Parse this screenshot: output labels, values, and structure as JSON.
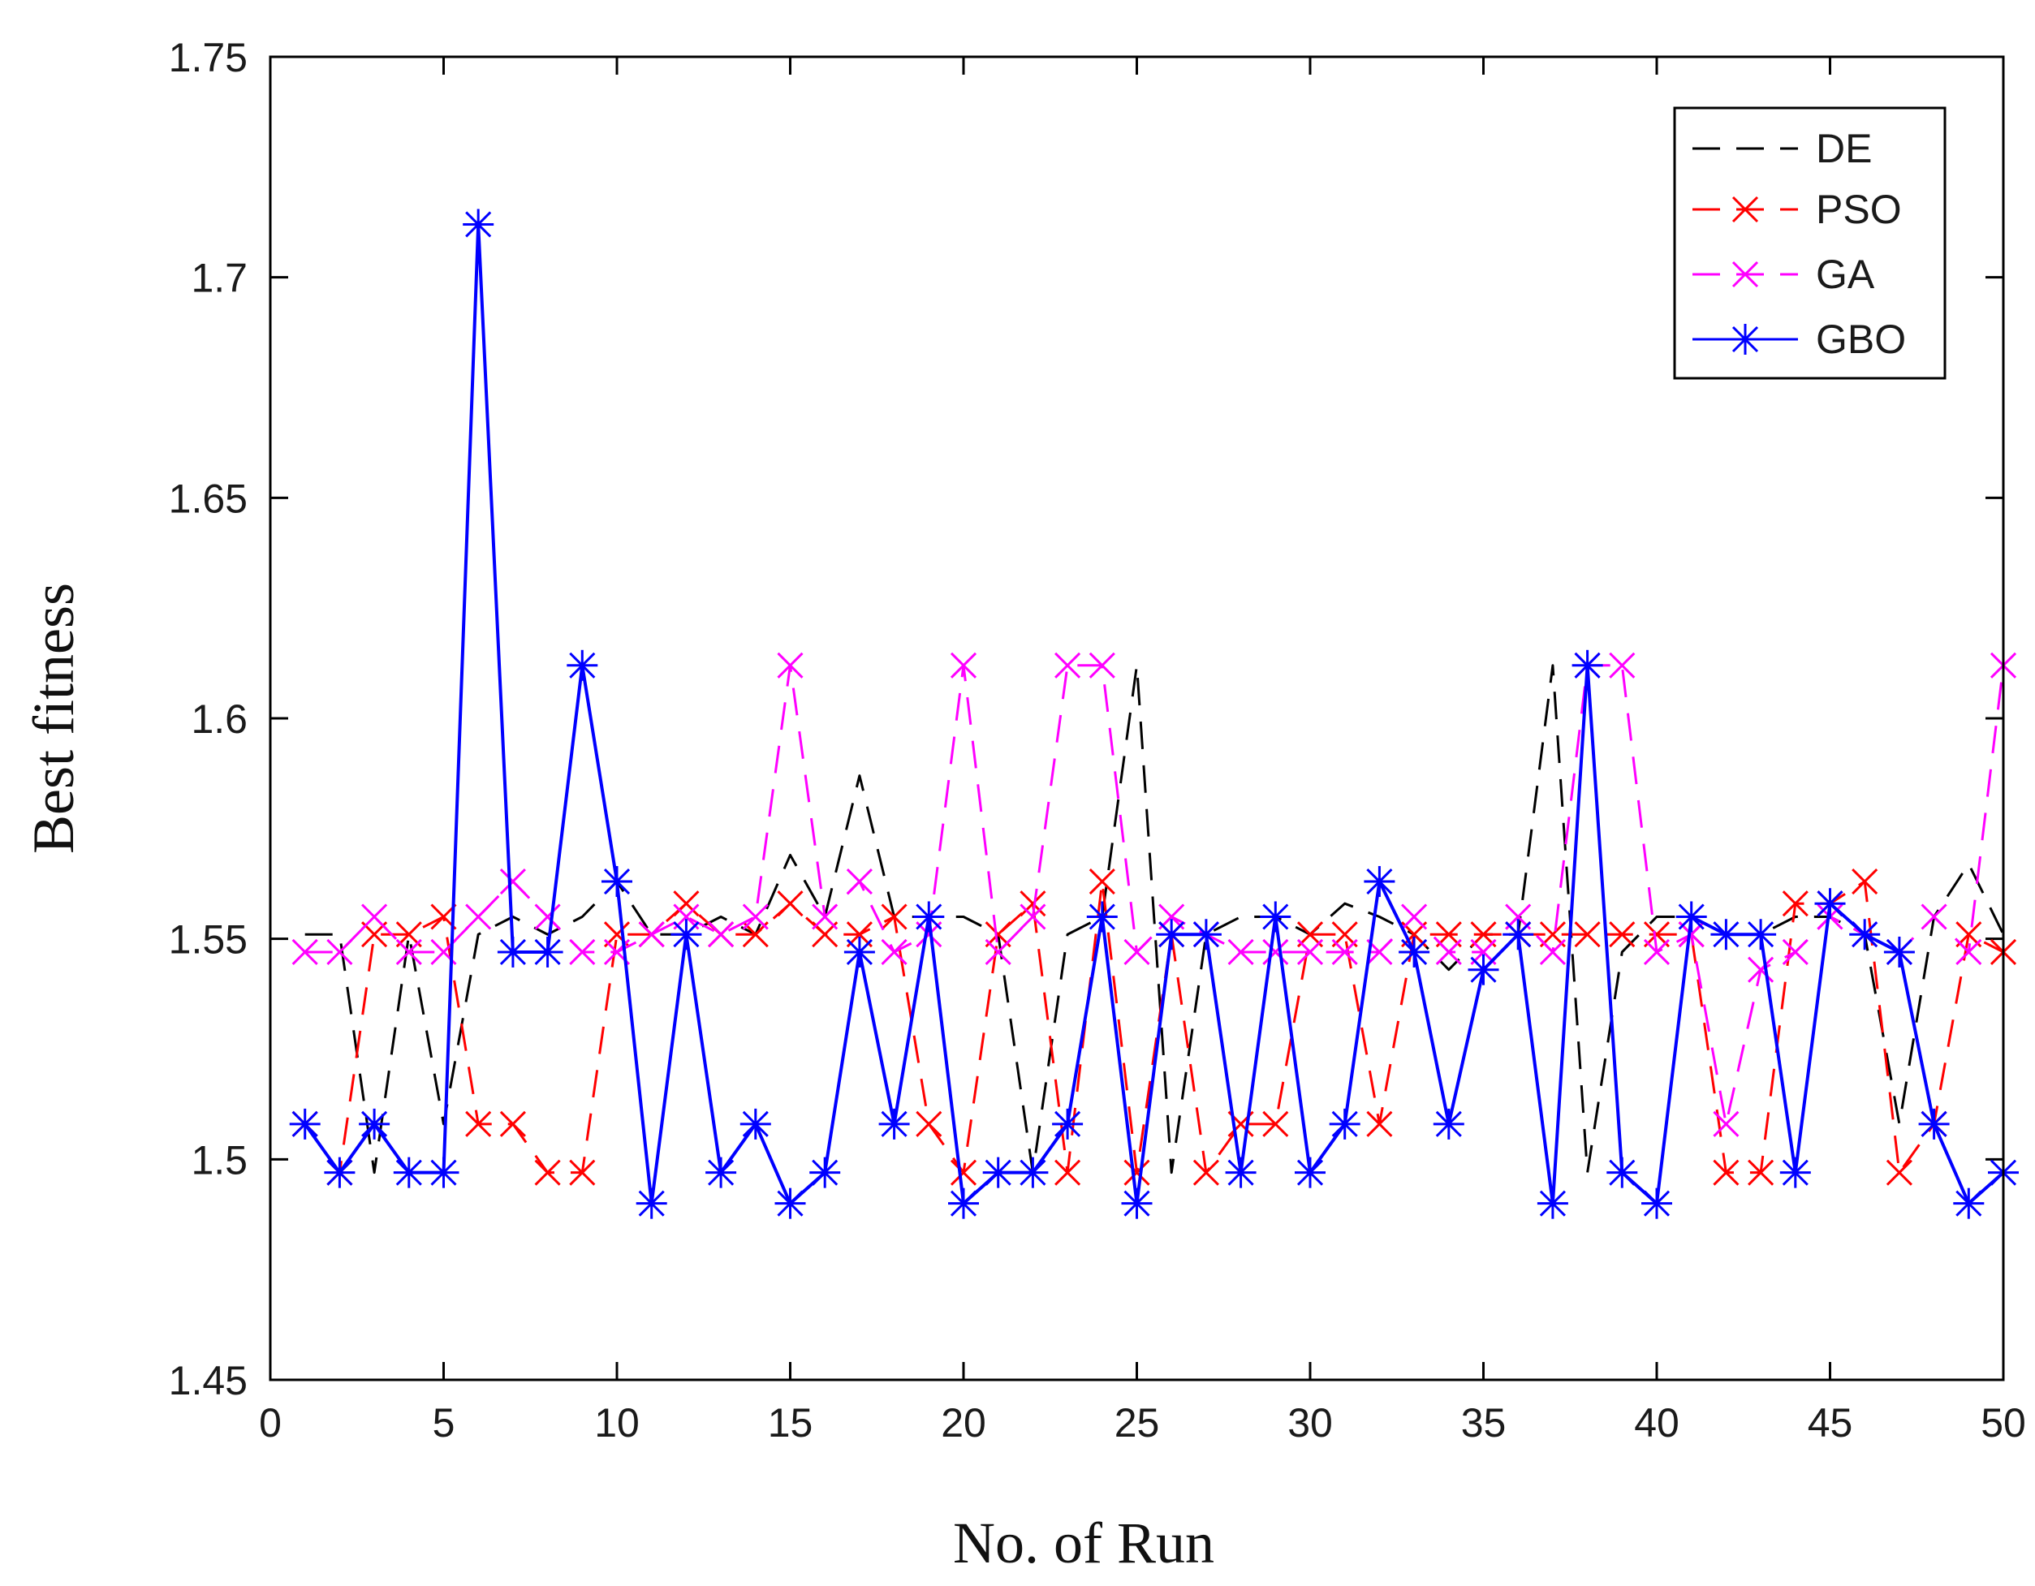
{
  "chart_data": {
    "type": "line",
    "title": "",
    "xlabel": "No. of Run",
    "ylabel": "Best fitness",
    "xlim": [
      0,
      50
    ],
    "ylim": [
      1.45,
      1.75
    ],
    "xticks": [
      0,
      5,
      10,
      15,
      20,
      25,
      30,
      35,
      40,
      45,
      50
    ],
    "yticks": [
      1.45,
      1.5,
      1.55,
      1.6,
      1.65,
      1.7,
      1.75
    ],
    "ytick_labels": [
      "1.45",
      "1.5",
      "1.55",
      "1.6",
      "1.65",
      "1.7",
      "1.75"
    ],
    "grid": false,
    "legend_position": "top-right",
    "x": [
      1,
      2,
      3,
      4,
      5,
      6,
      7,
      8,
      9,
      10,
      11,
      12,
      13,
      14,
      15,
      16,
      17,
      18,
      19,
      20,
      21,
      22,
      23,
      24,
      25,
      26,
      27,
      28,
      29,
      30,
      31,
      32,
      33,
      34,
      35,
      36,
      37,
      38,
      39,
      40,
      41,
      42,
      43,
      44,
      45,
      46,
      47,
      48,
      49,
      50
    ],
    "series": [
      {
        "name": "DE",
        "color": "#000000",
        "dash": "dashed",
        "marker": "none",
        "values": [
          1.551,
          1.551,
          1.497,
          1.551,
          1.508,
          1.551,
          1.555,
          1.551,
          1.555,
          1.563,
          1.551,
          1.551,
          1.555,
          1.551,
          1.569,
          1.555,
          1.587,
          1.555,
          1.555,
          1.555,
          1.551,
          1.497,
          1.551,
          1.555,
          1.612,
          1.497,
          1.551,
          1.555,
          1.555,
          1.551,
          1.558,
          1.555,
          1.551,
          1.543,
          1.551,
          1.551,
          1.612,
          1.497,
          1.547,
          1.555,
          1.555,
          1.551,
          1.551,
          1.555,
          1.555,
          1.551,
          1.508,
          1.555,
          1.567,
          1.551
        ]
      },
      {
        "name": "PSO",
        "color": "#ff0000",
        "dash": "dashed",
        "marker": "x",
        "values": [
          1.508,
          1.497,
          1.551,
          1.551,
          1.555,
          1.508,
          1.508,
          1.497,
          1.497,
          1.551,
          1.551,
          1.558,
          1.551,
          1.551,
          1.558,
          1.551,
          1.551,
          1.555,
          1.508,
          1.497,
          1.551,
          1.558,
          1.497,
          1.563,
          1.497,
          1.551,
          1.497,
          1.508,
          1.508,
          1.551,
          1.551,
          1.508,
          1.551,
          1.551,
          1.551,
          1.551,
          1.551,
          1.551,
          1.551,
          1.551,
          1.551,
          1.497,
          1.497,
          1.558,
          1.558,
          1.563,
          1.497,
          1.508,
          1.551,
          1.547
        ]
      },
      {
        "name": "GA",
        "color": "#ff00ff",
        "dash": "dashed",
        "marker": "x",
        "values": [
          1.547,
          1.547,
          1.555,
          1.547,
          1.547,
          1.555,
          1.563,
          1.555,
          1.547,
          1.547,
          1.551,
          1.555,
          1.551,
          1.555,
          1.612,
          1.555,
          1.563,
          1.547,
          1.551,
          1.612,
          1.547,
          1.555,
          1.612,
          1.612,
          1.547,
          1.555,
          1.551,
          1.547,
          1.547,
          1.547,
          1.547,
          1.547,
          1.555,
          1.547,
          1.547,
          1.555,
          1.547,
          1.612,
          1.612,
          1.547,
          1.551,
          1.508,
          1.543,
          1.547,
          1.555,
          1.551,
          1.547,
          1.555,
          1.547,
          1.612
        ]
      },
      {
        "name": "GBO",
        "color": "#0000ff",
        "dash": "solid",
        "marker": "asterisk",
        "values": [
          1.508,
          1.497,
          1.508,
          1.497,
          1.497,
          1.712,
          1.547,
          1.547,
          1.612,
          1.563,
          1.49,
          1.551,
          1.497,
          1.508,
          1.49,
          1.497,
          1.547,
          1.508,
          1.555,
          1.49,
          1.497,
          1.497,
          1.508,
          1.555,
          1.49,
          1.551,
          1.551,
          1.497,
          1.555,
          1.497,
          1.508,
          1.563,
          1.547,
          1.508,
          1.543,
          1.551,
          1.49,
          1.612,
          1.497,
          1.49,
          1.555,
          1.551,
          1.551,
          1.497,
          1.558,
          1.551,
          1.547,
          1.508,
          1.49,
          1.497
        ]
      }
    ]
  }
}
